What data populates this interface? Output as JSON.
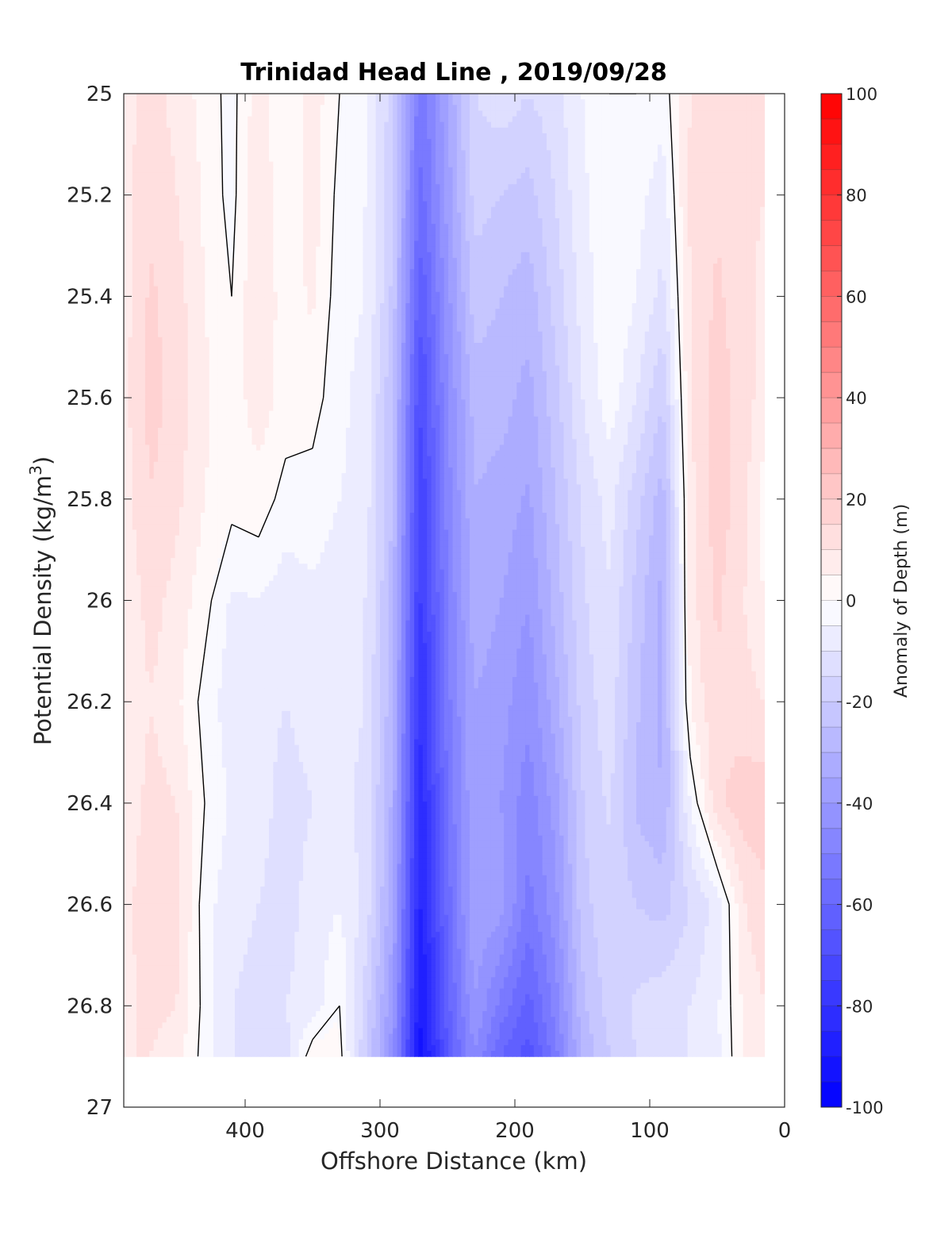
{
  "chart_data": {
    "type": "heatmap",
    "title": "Trinidad Head Line , 2019/09/28",
    "xlabel": "Offshore Distance (km)",
    "ylabel": "Potential Density (kg/m",
    "ylabel_superscript": "3",
    "ylabel_suffix": ")",
    "colorbar_label": "Anomaly of Depth (m)",
    "xlim": [
      490,
      0
    ],
    "x_reversed": true,
    "ylim": [
      25,
      27
    ],
    "y_reversed": true,
    "xticks": [
      400,
      300,
      200,
      100,
      0
    ],
    "xtick_labels": [
      "400",
      "300",
      "200",
      "100",
      "0"
    ],
    "yticks": [
      25,
      25.2,
      25.4,
      25.6,
      25.8,
      26,
      26.2,
      26.4,
      26.6,
      26.8,
      27
    ],
    "ytick_labels": [
      "25",
      "25.2",
      "25.4",
      "25.6",
      "25.8",
      "26",
      "26.2",
      "26.4",
      "26.6",
      "26.8",
      "27"
    ],
    "colorbar_ticks": [
      100,
      80,
      60,
      40,
      20,
      0,
      -20,
      -40,
      -60,
      -80,
      -100
    ],
    "colorbar_tick_labels": [
      "100",
      "80",
      "60",
      "40",
      "20",
      "0",
      "-20",
      "-40",
      "-60",
      "-80",
      "-100"
    ],
    "clim": [
      -100,
      100
    ],
    "contour_levels_step": 5,
    "colormap": {
      "low": "#0000ff",
      "mid": "#ffffff",
      "high": "#ff0000"
    },
    "data_y_range": [
      25,
      26.9
    ],
    "x": [
      490,
      470,
      450,
      430,
      410,
      390,
      370,
      350,
      330,
      310,
      290,
      270,
      250,
      230,
      210,
      190,
      170,
      150,
      130,
      110,
      90,
      70,
      50,
      30,
      15
    ],
    "y": [
      25,
      25.2,
      25.4,
      25.6,
      25.8,
      26,
      26.2,
      26.4,
      26.6,
      26.8,
      26.9
    ],
    "z": [
      [
        8,
        12,
        8,
        3,
        -2,
        8,
        0,
        8,
        0,
        -5,
        -18,
        -55,
        -35,
        -15,
        -12,
        -15,
        -12,
        -5,
        0,
        0,
        -3,
        10,
        12,
        12,
        10
      ],
      [
        8,
        14,
        10,
        4,
        -2,
        10,
        0,
        8,
        -2,
        -5,
        -20,
        -58,
        -38,
        -18,
        -20,
        -22,
        -15,
        -6,
        -2,
        -3,
        -8,
        12,
        14,
        12,
        10
      ],
      [
        8,
        16,
        12,
        5,
        0,
        10,
        2,
        6,
        -3,
        -5,
        -22,
        -65,
        -42,
        -22,
        -25,
        -28,
        -18,
        -8,
        0,
        -5,
        -12,
        10,
        16,
        12,
        8
      ],
      [
        8,
        17,
        13,
        6,
        2,
        8,
        3,
        2,
        -3,
        -8,
        -25,
        -72,
        -45,
        -28,
        -28,
        -32,
        -22,
        -10,
        -2,
        -10,
        -20,
        10,
        18,
        12,
        8
      ],
      [
        8,
        15,
        11,
        5,
        2,
        3,
        -2,
        -2,
        -5,
        -8,
        -26,
        -75,
        -48,
        -30,
        -32,
        -36,
        -25,
        -14,
        -8,
        -18,
        -28,
        8,
        18,
        12,
        2
      ],
      [
        6,
        12,
        8,
        2,
        -6,
        -5,
        -8,
        -6,
        -8,
        -10,
        -28,
        -78,
        -50,
        -32,
        -35,
        -40,
        -28,
        -16,
        -10,
        -22,
        -32,
        8,
        16,
        10,
        5
      ],
      [
        6,
        10,
        6,
        -2,
        -8,
        -8,
        -10,
        -8,
        -8,
        -10,
        -30,
        -82,
        -52,
        -35,
        -38,
        -44,
        -32,
        -18,
        -12,
        -24,
        -32,
        6,
        14,
        12,
        10
      ],
      [
        6,
        12,
        10,
        0,
        -6,
        -8,
        -12,
        -10,
        -8,
        -12,
        -32,
        -85,
        -55,
        -35,
        -40,
        -48,
        -38,
        -20,
        -14,
        -26,
        -30,
        -5,
        14,
        18,
        18
      ],
      [
        8,
        14,
        12,
        -3,
        -8,
        -10,
        -12,
        -8,
        -5,
        -12,
        -35,
        -88,
        -58,
        -35,
        -38,
        -52,
        -42,
        -22,
        -16,
        -20,
        -22,
        -15,
        -8,
        10,
        14
      ],
      [
        8,
        12,
        10,
        -2,
        -10,
        -12,
        -10,
        -8,
        0,
        -18,
        -40,
        -92,
        -62,
        -40,
        -52,
        -62,
        -48,
        -26,
        -18,
        -14,
        -12,
        -10,
        -6,
        6,
        10
      ],
      [
        10,
        10,
        6,
        -2,
        -10,
        -12,
        -12,
        4,
        2,
        -20,
        -44,
        -95,
        -65,
        -45,
        -60,
        -68,
        -52,
        -30,
        -20,
        -15,
        -12,
        -10,
        -6,
        5,
        8
      ]
    ]
  }
}
